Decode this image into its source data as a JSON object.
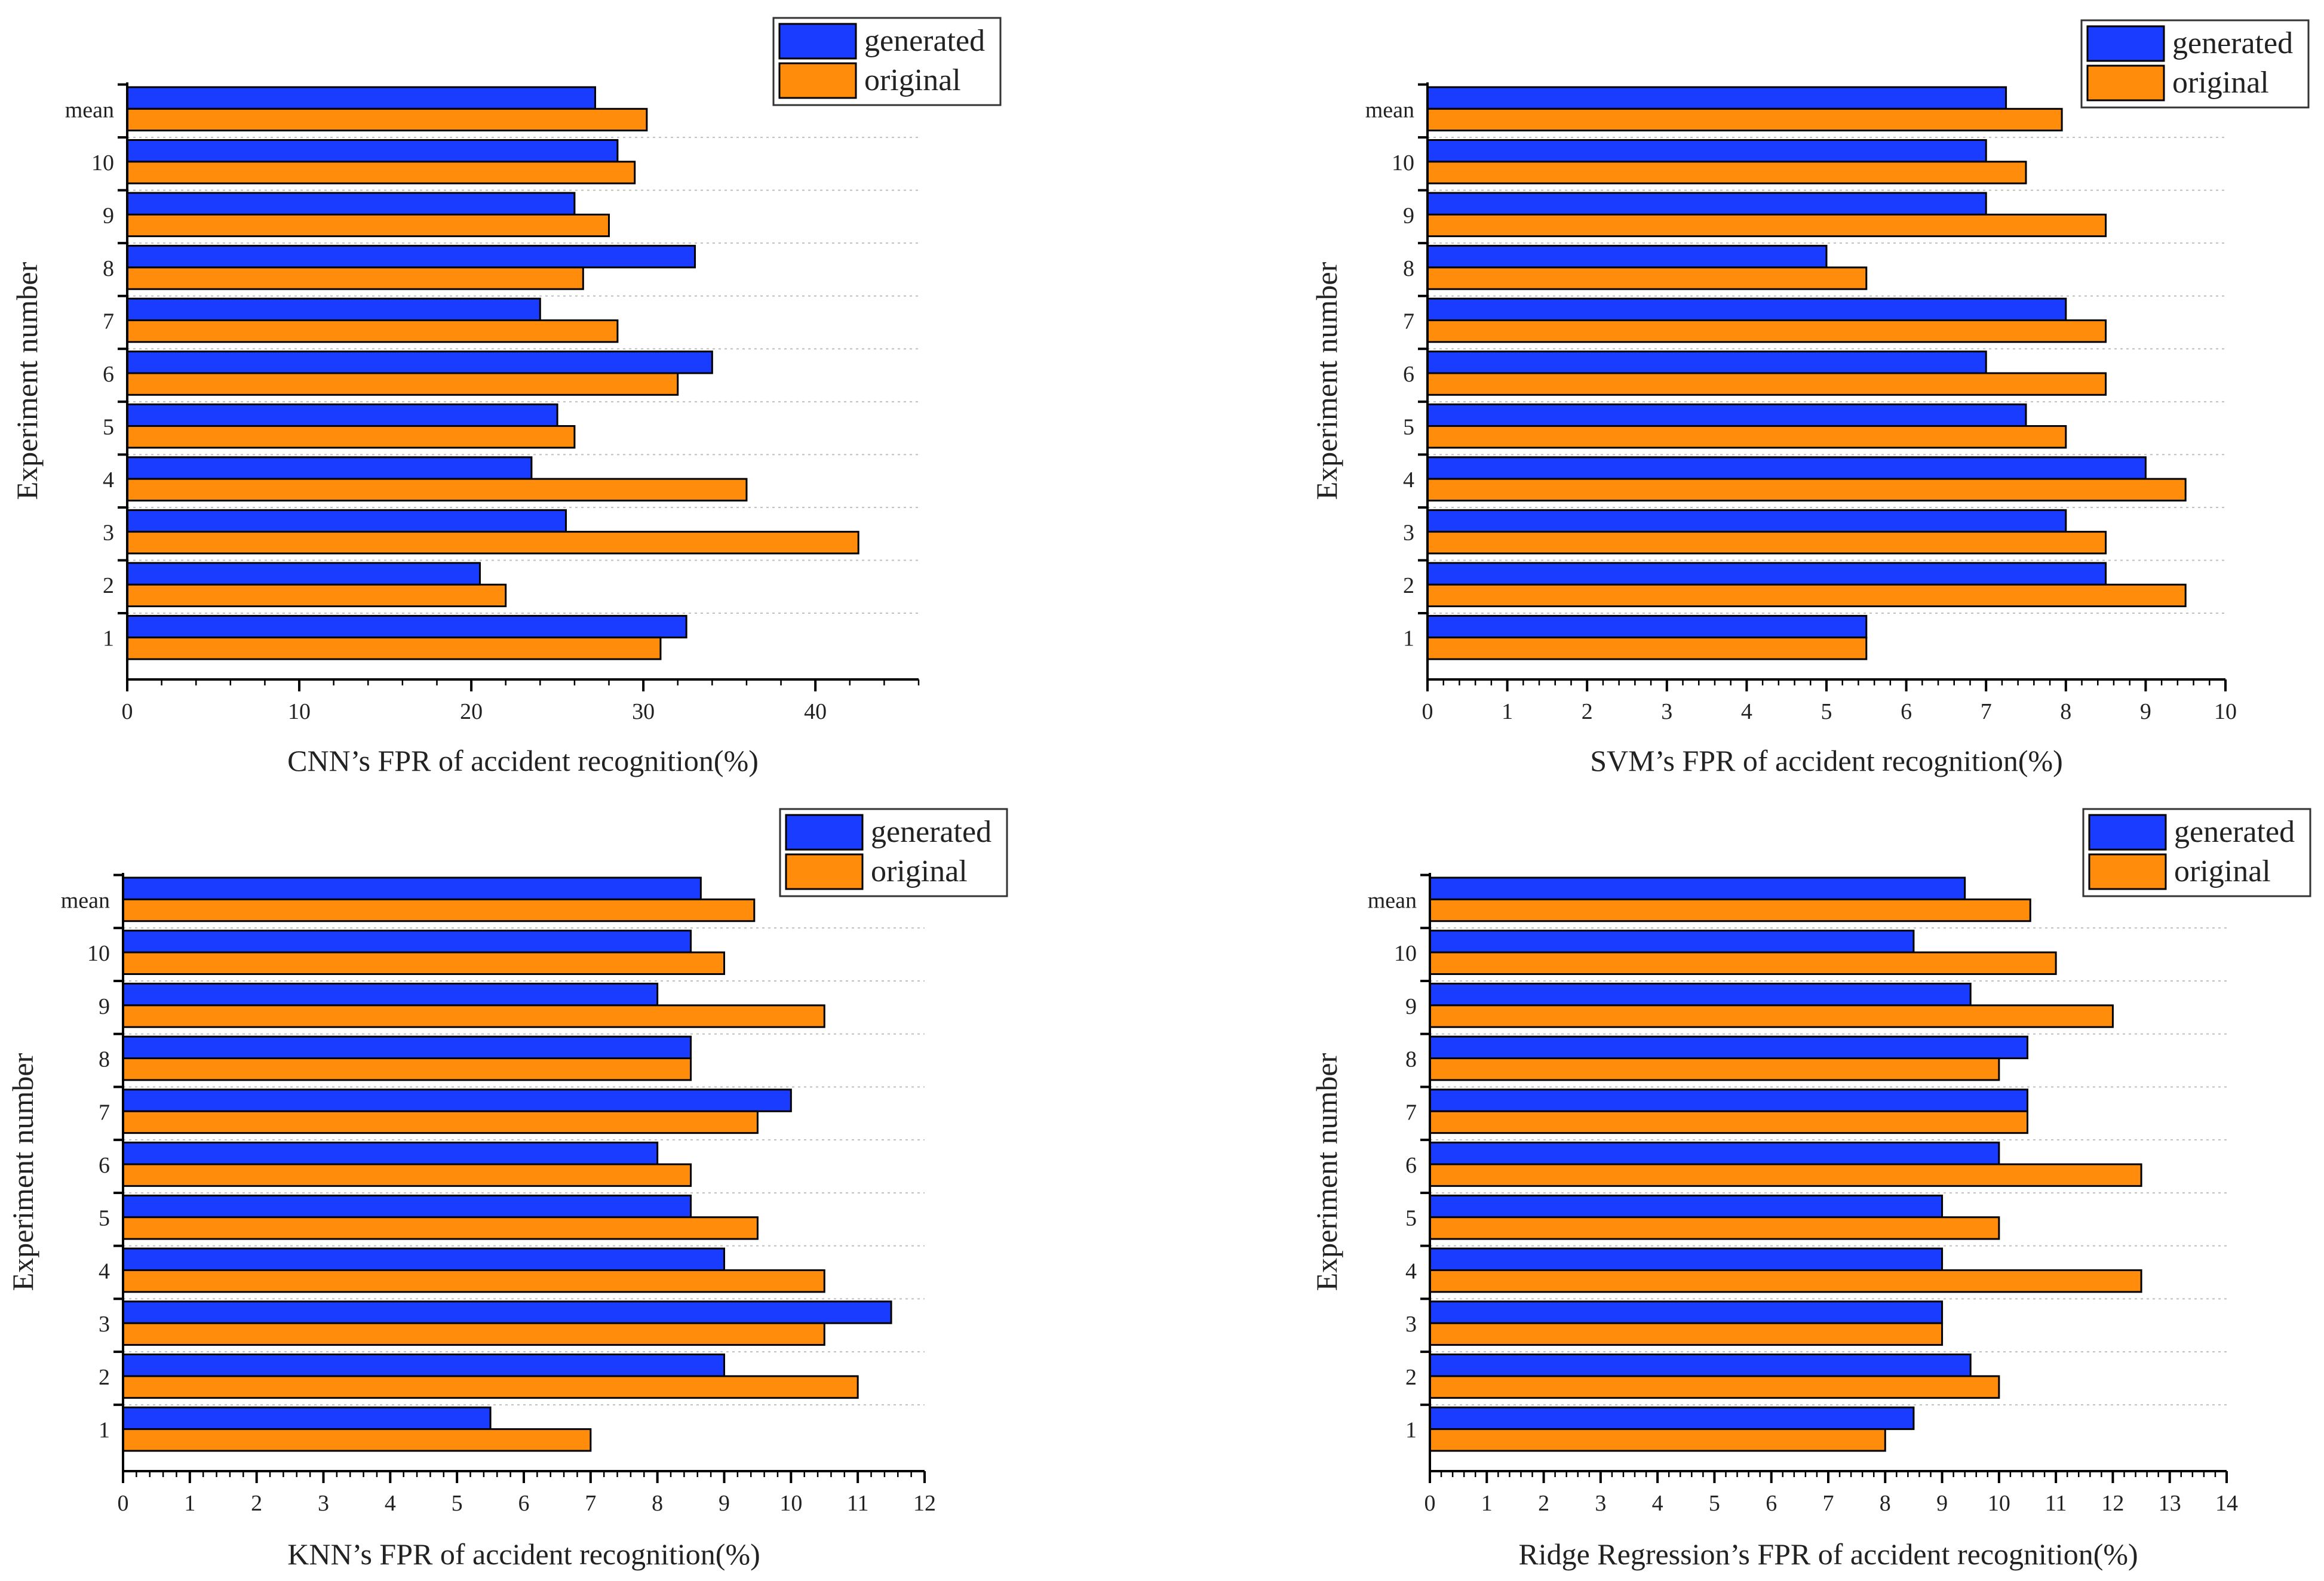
{
  "colors": {
    "generated": "#1a3cff",
    "original": "#ff8c0a",
    "grid": "#bfbfbf",
    "axis": "#000000"
  },
  "chart_data": [
    {
      "type": "bar",
      "orientation": "horizontal",
      "title": "",
      "xlabel": "CNN’s FPR of accident recognition(%)",
      "ylabel": "Experiment number",
      "categories": [
        "1",
        "2",
        "3",
        "4",
        "5",
        "6",
        "7",
        "8",
        "9",
        "10",
        "mean"
      ],
      "xlim": [
        0,
        46
      ],
      "xticks": [
        0,
        10,
        20,
        30,
        40
      ],
      "minor_step": 2,
      "legend_position": "top-right",
      "grid": true,
      "series": [
        {
          "name": "generated",
          "values": [
            32.5,
            20.5,
            25.5,
            23.5,
            25,
            34,
            24,
            33,
            26,
            28.5,
            27.2
          ]
        },
        {
          "name": "original",
          "values": [
            31,
            22,
            42.5,
            36,
            26,
            32,
            28.5,
            26.5,
            28,
            29.5,
            30.2
          ]
        }
      ]
    },
    {
      "type": "bar",
      "orientation": "horizontal",
      "title": "",
      "xlabel": "SVM’s FPR of accident recognition(%)",
      "ylabel": "Experiment number",
      "categories": [
        "1",
        "2",
        "3",
        "4",
        "5",
        "6",
        "7",
        "8",
        "9",
        "10",
        "mean"
      ],
      "xlim": [
        0,
        10
      ],
      "xticks": [
        0,
        1,
        2,
        3,
        4,
        5,
        6,
        7,
        8,
        9,
        10
      ],
      "minor_step": 0.2,
      "legend_position": "top-right",
      "grid": true,
      "series": [
        {
          "name": "generated",
          "values": [
            5.5,
            8.5,
            8,
            9,
            7.5,
            7,
            8,
            5,
            7,
            7,
            7.25
          ]
        },
        {
          "name": "original",
          "values": [
            5.5,
            9.5,
            8.5,
            9.5,
            8,
            8.5,
            8.5,
            5.5,
            8.5,
            7.5,
            7.95
          ]
        }
      ]
    },
    {
      "type": "bar",
      "orientation": "horizontal",
      "title": "",
      "xlabel": "KNN’s FPR of accident recognition(%)",
      "ylabel": "Experiment number",
      "categories": [
        "1",
        "2",
        "3",
        "4",
        "5",
        "6",
        "7",
        "8",
        "9",
        "10",
        "mean"
      ],
      "xlim": [
        0,
        12
      ],
      "xticks": [
        0,
        1,
        2,
        3,
        4,
        5,
        6,
        7,
        8,
        9,
        10,
        11,
        12
      ],
      "minor_step": 0.2,
      "legend_position": "top-right",
      "grid": true,
      "series": [
        {
          "name": "generated",
          "values": [
            5.5,
            9,
            11.5,
            9,
            8.5,
            8,
            10,
            8.5,
            8,
            8.5,
            8.65
          ]
        },
        {
          "name": "original",
          "values": [
            7,
            11,
            10.5,
            10.5,
            9.5,
            8.5,
            9.5,
            8.5,
            10.5,
            9,
            9.45
          ]
        }
      ]
    },
    {
      "type": "bar",
      "orientation": "horizontal",
      "title": "",
      "xlabel": "Ridge Regression’s FPR of accident recognition(%)",
      "ylabel": "Experiment number",
      "categories": [
        "1",
        "2",
        "3",
        "4",
        "5",
        "6",
        "7",
        "8",
        "9",
        "10",
        "mean"
      ],
      "xlim": [
        0,
        14
      ],
      "xticks": [
        0,
        1,
        2,
        3,
        4,
        5,
        6,
        7,
        8,
        9,
        10,
        11,
        12,
        13,
        14
      ],
      "minor_step": 0.2,
      "legend_position": "top-right",
      "grid": true,
      "series": [
        {
          "name": "generated",
          "values": [
            8.5,
            9.5,
            9,
            9,
            9,
            10,
            10.5,
            10.5,
            9.5,
            8.5,
            9.4
          ]
        },
        {
          "name": "original",
          "values": [
            8,
            10,
            9,
            12.5,
            10,
            12.5,
            10.5,
            10,
            12,
            11,
            10.55
          ]
        }
      ]
    }
  ]
}
